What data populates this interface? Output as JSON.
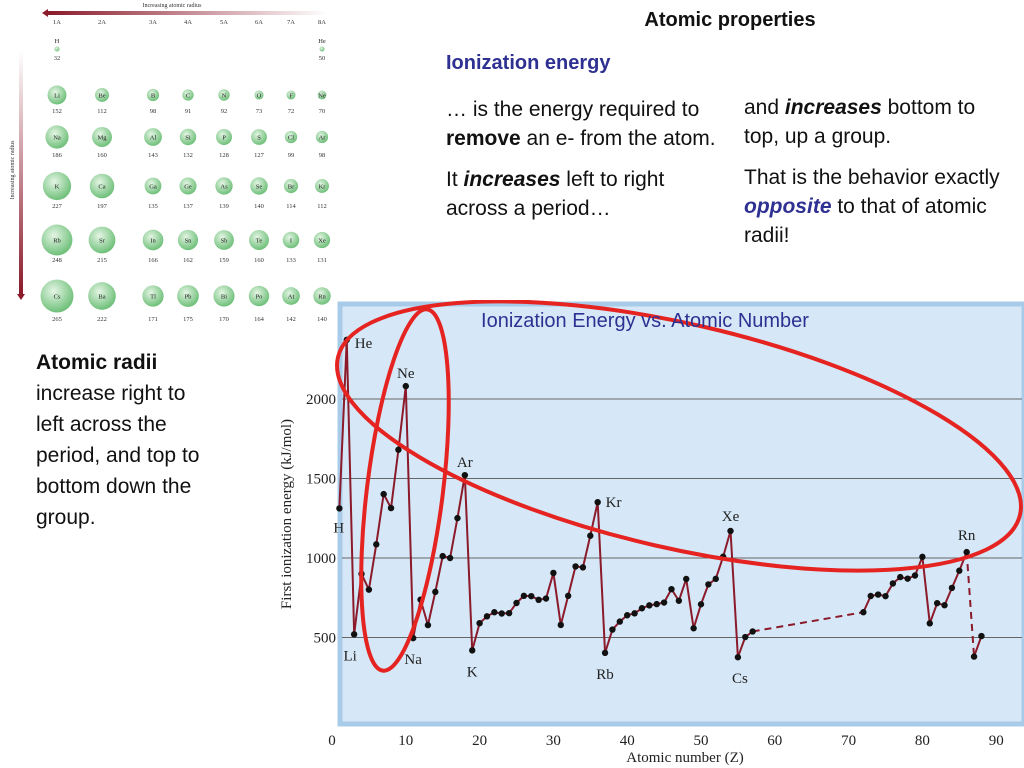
{
  "slide": {
    "title": "Atomic properties",
    "section_heading": "Ionization energy",
    "left_column": {
      "p1_a": "… is the energy required to ",
      "p1_bold": "remove",
      "p1_b": " an e- from the atom.",
      "p2_a": "It ",
      "p2_bolditalic": "increases",
      "p2_b": " left to right across a period…"
    },
    "right_column": {
      "p1_a": "and ",
      "p1_bolditalic": "increases",
      "p1_b": " bottom to top, up a group.",
      "p2_a": "That is the behavior exactly ",
      "p2_bolditalic": "opposite",
      "p2_b": " to that of atomic radii!"
    },
    "radii_note": {
      "bold": "Atomic radii",
      "rest": " increase right to left across the period, and top to bottom down the group."
    }
  },
  "periodic_table": {
    "top_arrow_label": "Increasing atomic radius",
    "side_arrow_label": "Increasing atomic radius",
    "groups": [
      "1A",
      "2A",
      "3A",
      "4A",
      "5A",
      "6A",
      "7A",
      "8A"
    ],
    "rows": [
      [
        {
          "s": "H",
          "r": "32"
        },
        null,
        null,
        null,
        null,
        null,
        null,
        {
          "s": "He",
          "r": "50"
        }
      ],
      [
        {
          "s": "Li",
          "r": "152"
        },
        {
          "s": "Be",
          "r": "112"
        },
        {
          "s": "B",
          "r": "98"
        },
        {
          "s": "C",
          "r": "91"
        },
        {
          "s": "N",
          "r": "92"
        },
        {
          "s": "O",
          "r": "73"
        },
        {
          "s": "F",
          "r": "72"
        },
        {
          "s": "Ne",
          "r": "70"
        }
      ],
      [
        {
          "s": "Na",
          "r": "186"
        },
        {
          "s": "Mg",
          "r": "160"
        },
        {
          "s": "Al",
          "r": "143"
        },
        {
          "s": "Si",
          "r": "132"
        },
        {
          "s": "P",
          "r": "128"
        },
        {
          "s": "S",
          "r": "127"
        },
        {
          "s": "Cl",
          "r": "99"
        },
        {
          "s": "Ar",
          "r": "98"
        }
      ],
      [
        {
          "s": "K",
          "r": "227"
        },
        {
          "s": "Ca",
          "r": "197"
        },
        {
          "s": "Ga",
          "r": "135"
        },
        {
          "s": "Ge",
          "r": "137"
        },
        {
          "s": "As",
          "r": "139"
        },
        {
          "s": "Se",
          "r": "140"
        },
        {
          "s": "Br",
          "r": "114"
        },
        {
          "s": "Kr",
          "r": "112"
        }
      ],
      [
        {
          "s": "Rb",
          "r": "248"
        },
        {
          "s": "Sr",
          "r": "215"
        },
        {
          "s": "In",
          "r": "166"
        },
        {
          "s": "Sn",
          "r": "162"
        },
        {
          "s": "Sb",
          "r": "159"
        },
        {
          "s": "Te",
          "r": "160"
        },
        {
          "s": "I",
          "r": "133"
        },
        {
          "s": "Xe",
          "r": "131"
        }
      ],
      [
        {
          "s": "Cs",
          "r": "265"
        },
        {
          "s": "Ba",
          "r": "222"
        },
        {
          "s": "Tl",
          "r": "171"
        },
        {
          "s": "Pb",
          "r": "175"
        },
        {
          "s": "Bi",
          "r": "170"
        },
        {
          "s": "Po",
          "r": "164"
        },
        {
          "s": "At",
          "r": "142"
        },
        {
          "s": "Rn",
          "r": "140"
        }
      ]
    ],
    "colors": {
      "sphere": "#6fc07a",
      "sphere_light": "#e4f5e4",
      "arrow": "#8b1a2b"
    }
  },
  "chart_data": {
    "type": "line",
    "title": "Ionization Energy vs. Atomic Number",
    "xlabel": "Atomic number (Z)",
    "ylabel": "First ionization energy (kJ/mol)",
    "xlim": [
      0,
      90
    ],
    "ylim": [
      0,
      2400
    ],
    "xticks": [
      0,
      10,
      20,
      30,
      40,
      50,
      60,
      70,
      80,
      90
    ],
    "yticks": [
      500,
      1000,
      1500,
      2000
    ],
    "grid": "horizontal",
    "x": [
      1,
      2,
      3,
      4,
      5,
      6,
      7,
      8,
      9,
      10,
      11,
      12,
      13,
      14,
      15,
      16,
      17,
      18,
      19,
      20,
      21,
      22,
      23,
      24,
      25,
      26,
      27,
      28,
      29,
      30,
      31,
      32,
      33,
      34,
      35,
      36,
      37,
      38,
      39,
      40,
      41,
      42,
      43,
      44,
      45,
      46,
      47,
      48,
      49,
      50,
      51,
      52,
      53,
      54,
      55,
      56,
      57,
      72,
      73,
      74,
      75,
      76,
      77,
      78,
      79,
      80,
      81,
      82,
      83,
      84,
      85,
      86,
      87,
      88
    ],
    "y": [
      1312,
      2372,
      520,
      900,
      801,
      1086,
      1402,
      1314,
      1681,
      2081,
      496,
      738,
      578,
      787,
      1012,
      1000,
      1251,
      1521,
      419,
      590,
      633,
      659,
      651,
      653,
      717,
      762,
      760,
      737,
      745,
      906,
      579,
      762,
      947,
      941,
      1140,
      1351,
      403,
      550,
      600,
      640,
      652,
      684,
      702,
      710,
      720,
      804,
      731,
      868,
      558,
      709,
      834,
      869,
      1008,
      1170,
      376,
      503,
      538,
      659,
      761,
      770,
      760,
      840,
      880,
      870,
      890,
      1007,
      589,
      716,
      703,
      812,
      920,
      1037,
      380,
      509
    ],
    "dashed_segments": [
      [
        57,
        72
      ],
      [
        86,
        87
      ]
    ],
    "labeled_points": [
      {
        "label": "He",
        "z": 2
      },
      {
        "label": "H",
        "z": 1
      },
      {
        "label": "Li",
        "z": 3
      },
      {
        "label": "Ne",
        "z": 10
      },
      {
        "label": "Na",
        "z": 11
      },
      {
        "label": "Ar",
        "z": 18
      },
      {
        "label": "K",
        "z": 19
      },
      {
        "label": "Kr",
        "z": 36
      },
      {
        "label": "Rb",
        "z": 37
      },
      {
        "label": "Xe",
        "z": 54
      },
      {
        "label": "Cs",
        "z": 55
      },
      {
        "label": "Rn",
        "z": 86
      }
    ],
    "colors": {
      "line": "#8b1a2b",
      "point": "#111111",
      "panel": "#d6e8f7",
      "panel_border": "#a9cbea",
      "highlight": "#e52421",
      "title": "#2e3192"
    }
  }
}
